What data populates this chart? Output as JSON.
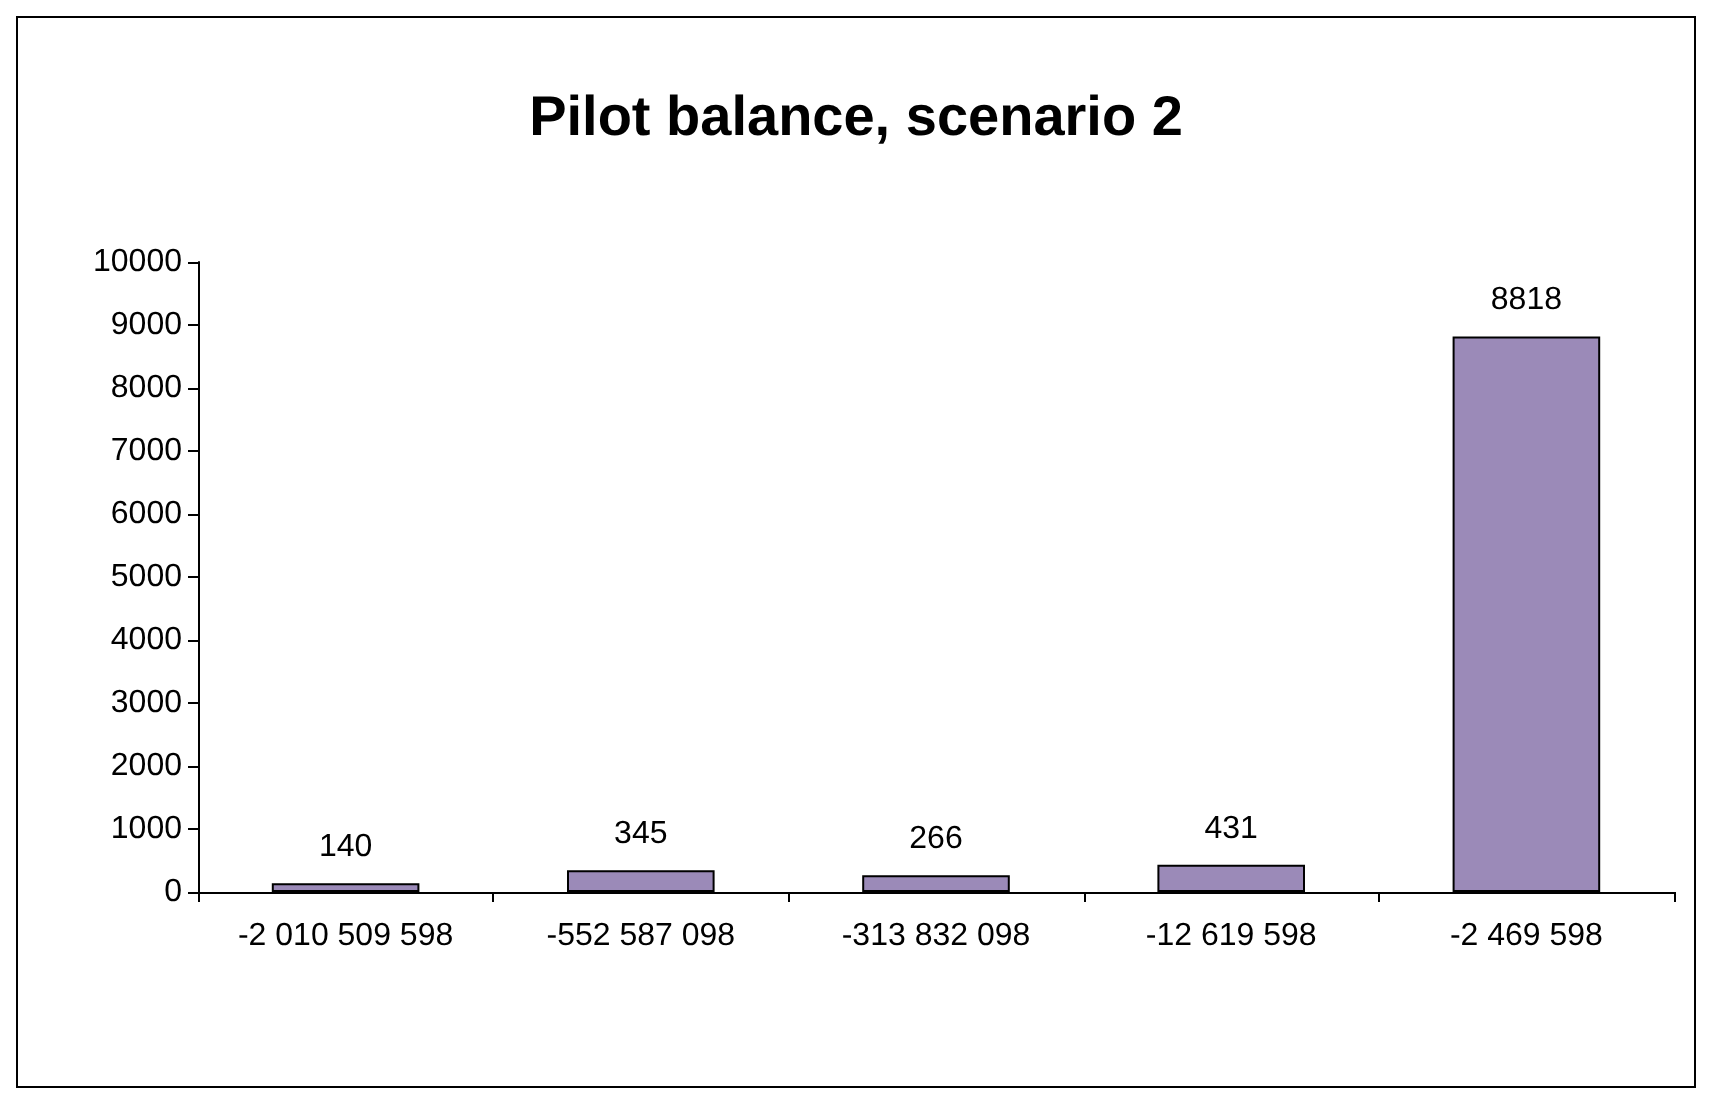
{
  "chart_data": {
    "type": "bar",
    "title": "Pilot balance, scenario 2",
    "categories": [
      "-2 010 509 598",
      "-552 587 098",
      "-313 832 098",
      "-12 619 598",
      "-2 469 598"
    ],
    "values": [
      140,
      345,
      266,
      431,
      8818
    ],
    "color": "#9b8ab8",
    "ylim": [
      0,
      10000
    ],
    "yticks": [
      0,
      1000,
      2000,
      3000,
      4000,
      5000,
      6000,
      7000,
      8000,
      9000,
      10000
    ],
    "grid": false,
    "data_labels": true
  }
}
